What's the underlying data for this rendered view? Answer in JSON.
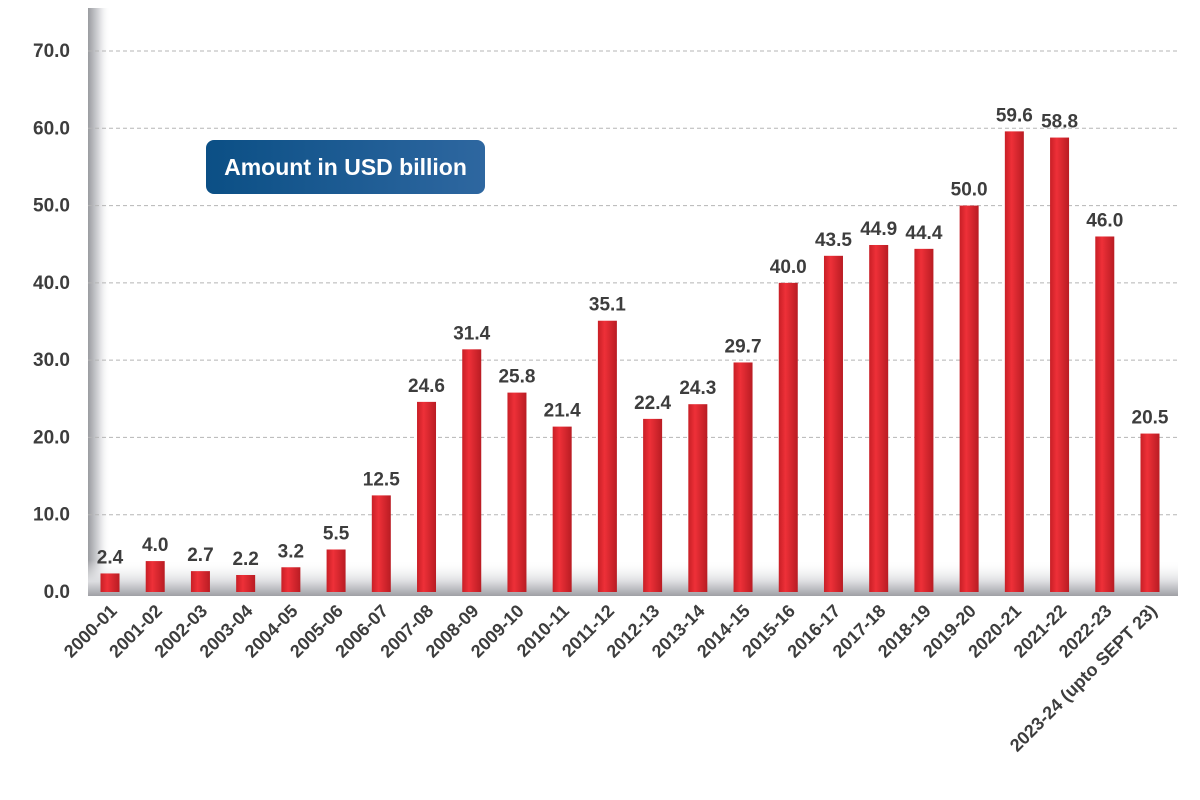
{
  "chart_data": {
    "type": "bar",
    "title": "",
    "xlabel": "",
    "ylabel": "",
    "unit_note": "Amount in USD billion",
    "ylim": [
      0,
      70
    ],
    "yticks": [
      "0.0",
      "10.0",
      "20.0",
      "30.0",
      "40.0",
      "50.0",
      "60.0",
      "70.0"
    ],
    "grid": true,
    "bar_color": "#e3262e",
    "unit_box_color": "#0b4f85",
    "categories": [
      "2000-01",
      "2001-02",
      "2002-03",
      "2003-04",
      "2004-05",
      "2005-06",
      "2006-07",
      "2007-08",
      "2008-09",
      "2009-10",
      "2010-11",
      "2011-12",
      "2012-13",
      "2013-14",
      "2014-15",
      "2015-16",
      "2016-17",
      "2017-18",
      "2018-19",
      "2019-20",
      "2020-21",
      "2021-22",
      "2022-23",
      "2023-24 (upto SEPT 23)"
    ],
    "values": [
      2.4,
      4.0,
      2.7,
      2.2,
      3.2,
      5.5,
      12.5,
      24.6,
      31.4,
      25.8,
      21.4,
      35.1,
      22.4,
      24.3,
      29.7,
      40.0,
      43.5,
      44.9,
      44.4,
      50.0,
      59.6,
      58.8,
      46.0,
      20.5
    ],
    "data_labels": [
      "2.4",
      "4.0",
      "2.7",
      "2.2",
      "3.2",
      "5.5",
      "12.5",
      "24.6",
      "31.4",
      "25.8",
      "21.4",
      "35.1",
      "22.4",
      "24.3",
      "29.7",
      "40.0",
      "43.5",
      "44.9",
      "44.4",
      "50.0",
      "59.6",
      "58.8",
      "46.0",
      "20.5"
    ]
  }
}
